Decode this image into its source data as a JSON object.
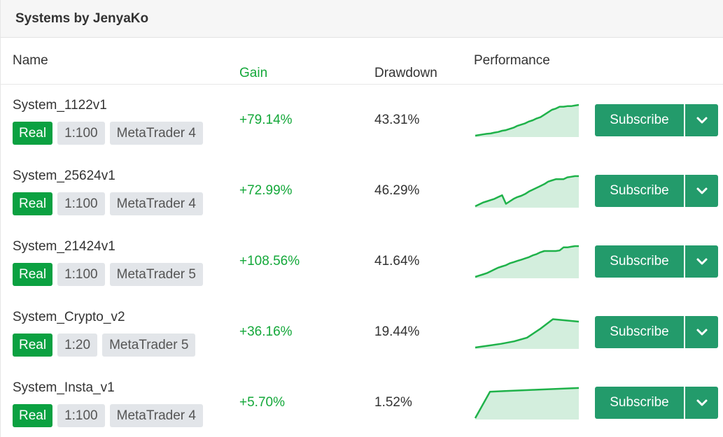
{
  "panel": {
    "title": "Systems by JenyaKo"
  },
  "columns": {
    "name": "Name",
    "gain": "Gain",
    "drawdown": "Drawdown",
    "performance": "Performance"
  },
  "colors": {
    "accent": "#239b6b",
    "gain": "#14a83a",
    "real_badge": "#0ba141",
    "spark_line": "#1fb24a",
    "spark_fill": "#d3eedd"
  },
  "subscribe_label": "Subscribe",
  "systems": [
    {
      "name": "System_1122v1",
      "account": "Real",
      "leverage": "1:100",
      "platform": "MetaTrader 4",
      "gain": "+79.14%",
      "drawdown": "43.31%",
      "performance": [
        0,
        1,
        2,
        3,
        3.5,
        5,
        6,
        8,
        9,
        11,
        13,
        16,
        18,
        20,
        23,
        25,
        28,
        30,
        34,
        38,
        42,
        44,
        47,
        47,
        48,
        48,
        49,
        50
      ]
    },
    {
      "name": "System_25624v1",
      "account": "Real",
      "leverage": "1:100",
      "platform": "MetaTrader 4",
      "gain": "+72.99%",
      "drawdown": "46.29%",
      "performance": [
        0,
        3,
        6,
        8,
        10,
        12,
        15,
        18,
        4,
        8,
        12,
        15,
        17,
        20,
        24,
        27,
        30,
        33,
        36,
        40,
        42,
        44,
        44,
        44,
        47,
        48,
        49,
        49
      ]
    },
    {
      "name": "System_21424v1",
      "account": "Real",
      "leverage": "1:100",
      "platform": "MetaTrader 5",
      "gain": "+108.56%",
      "drawdown": "41.64%",
      "performance": [
        0,
        2,
        4,
        6,
        9,
        12,
        15,
        17,
        19,
        22,
        24,
        26,
        28,
        30,
        32,
        35,
        37,
        40,
        42,
        42,
        42,
        42,
        43,
        48,
        48,
        49,
        50,
        50
      ]
    },
    {
      "name": "System_Crypto_v2",
      "account": "Real",
      "leverage": "1:20",
      "platform": "MetaTrader 5",
      "gain": "+36.16%",
      "drawdown": "19.44%",
      "performance": [
        0,
        3,
        6,
        10,
        16,
        30,
        46,
        44,
        42
      ]
    },
    {
      "name": "System_Insta_v1",
      "account": "Real",
      "leverage": "1:100",
      "platform": "MetaTrader 4",
      "gain": "+5.70%",
      "drawdown": "1.52%",
      "performance": [
        0,
        43,
        44,
        45,
        46,
        47,
        48,
        49
      ]
    }
  ]
}
